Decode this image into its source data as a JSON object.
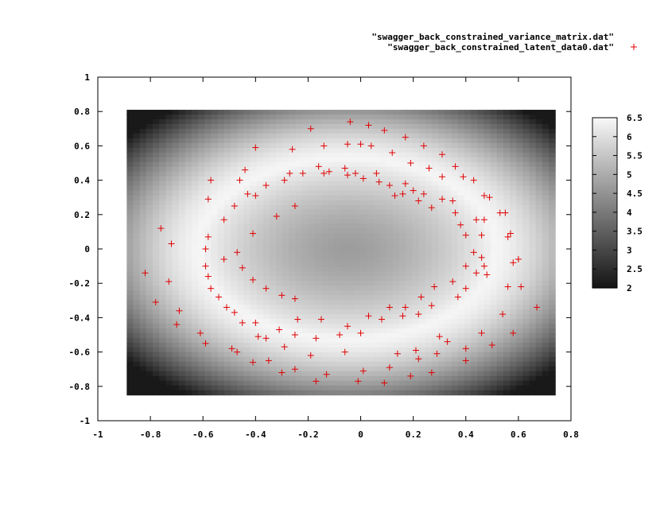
{
  "chart_data": {
    "type": "scatter",
    "title": "",
    "xlabel": "",
    "ylabel": "",
    "xlim": [
      -1,
      0.8
    ],
    "ylim": [
      -1,
      1
    ],
    "xticks": [
      "-1",
      "-0.8",
      "-0.6",
      "-0.4",
      "-0.2",
      "0",
      "0.2",
      "0.4",
      "0.6",
      "0.8"
    ],
    "yticks": [
      "-1",
      "-0.8",
      "-0.6",
      "-0.4",
      "-0.2",
      "0",
      "0.2",
      "0.4",
      "0.6",
      "0.8",
      "1"
    ],
    "legend_position": "top-right",
    "legend": [
      {
        "name": "\"swagger_back_constrained_variance_matrix.dat\"",
        "marker": ""
      },
      {
        "name": "\"swagger_back_constrained_latent_data0.dat\"",
        "marker": "+"
      }
    ],
    "heatmap": {
      "series_name": "\"swagger_back_constrained_variance_matrix.dat\"",
      "xrange": [
        -0.89,
        0.74
      ],
      "yrange": [
        -0.85,
        0.81
      ],
      "center": [
        -0.05,
        0.0
      ],
      "vmin": 2,
      "vmax": 6.5,
      "colorbar_ticks": [
        "6.5",
        "6",
        "5.5",
        "5",
        "4.5",
        "4",
        "3.5",
        "3",
        "2.5",
        "2"
      ],
      "colormap": "grayscale"
    },
    "scatter_series": {
      "name": "\"swagger_back_constrained_latent_data0.dat\"",
      "color": "#e00000",
      "marker": "+",
      "points": [
        [
          -0.04,
          0.74
        ],
        [
          0.03,
          0.72
        ],
        [
          0.09,
          0.69
        ],
        [
          -0.19,
          0.7
        ],
        [
          0.17,
          0.65
        ],
        [
          0.24,
          0.6
        ],
        [
          0.31,
          0.55
        ],
        [
          0.36,
          0.48
        ],
        [
          0.43,
          0.4
        ],
        [
          0.47,
          0.31
        ],
        [
          0.49,
          0.3
        ],
        [
          0.55,
          0.21
        ],
        [
          0.53,
          0.21
        ],
        [
          0.56,
          0.07
        ],
        [
          0.57,
          0.09
        ],
        [
          0.58,
          -0.08
        ],
        [
          0.6,
          -0.06
        ],
        [
          0.61,
          -0.22
        ],
        [
          0.67,
          -0.34
        ],
        [
          0.56,
          -0.22
        ],
        [
          0.58,
          -0.49
        ],
        [
          0.54,
          -0.38
        ],
        [
          0.5,
          -0.56
        ],
        [
          0.46,
          -0.49
        ],
        [
          0.4,
          -0.58
        ],
        [
          0.4,
          -0.65
        ],
        [
          0.33,
          -0.54
        ],
        [
          0.29,
          -0.61
        ],
        [
          0.3,
          -0.51
        ],
        [
          0.27,
          -0.72
        ],
        [
          0.22,
          -0.64
        ],
        [
          0.19,
          -0.74
        ],
        [
          0.21,
          -0.59
        ],
        [
          0.14,
          -0.61
        ],
        [
          0.11,
          -0.69
        ],
        [
          0.09,
          -0.78
        ],
        [
          0.01,
          -0.71
        ],
        [
          -0.01,
          -0.77
        ],
        [
          -0.06,
          -0.6
        ],
        [
          -0.13,
          -0.73
        ],
        [
          -0.17,
          -0.77
        ],
        [
          -0.19,
          -0.62
        ],
        [
          -0.25,
          -0.7
        ],
        [
          -0.3,
          -0.72
        ],
        [
          -0.35,
          -0.65
        ],
        [
          -0.41,
          -0.66
        ],
        [
          -0.47,
          -0.6
        ],
        [
          -0.49,
          -0.58
        ],
        [
          -0.59,
          -0.55
        ],
        [
          -0.61,
          -0.49
        ],
        [
          -0.7,
          -0.44
        ],
        [
          -0.69,
          -0.36
        ],
        [
          -0.78,
          -0.31
        ],
        [
          -0.73,
          -0.19
        ],
        [
          -0.82,
          -0.14
        ],
        [
          -0.72,
          0.03
        ],
        [
          -0.76,
          0.12
        ],
        [
          -0.59,
          -0.1
        ],
        [
          -0.58,
          -0.16
        ],
        [
          -0.57,
          -0.23
        ],
        [
          -0.54,
          -0.28
        ],
        [
          -0.51,
          -0.34
        ],
        [
          -0.48,
          -0.37
        ],
        [
          -0.45,
          -0.43
        ],
        [
          -0.4,
          -0.43
        ],
        [
          -0.39,
          -0.51
        ],
        [
          -0.36,
          -0.52
        ],
        [
          -0.31,
          -0.47
        ],
        [
          -0.29,
          -0.57
        ],
        [
          -0.25,
          -0.5
        ],
        [
          -0.24,
          -0.41
        ],
        [
          -0.15,
          -0.41
        ],
        [
          -0.17,
          -0.52
        ],
        [
          -0.08,
          -0.5
        ],
        [
          -0.05,
          -0.45
        ],
        [
          0.0,
          -0.49
        ],
        [
          0.03,
          -0.39
        ],
        [
          0.08,
          -0.41
        ],
        [
          0.11,
          -0.34
        ],
        [
          0.16,
          -0.39
        ],
        [
          0.17,
          -0.34
        ],
        [
          0.22,
          -0.38
        ],
        [
          0.23,
          -0.28
        ],
        [
          0.27,
          -0.33
        ],
        [
          0.28,
          -0.22
        ],
        [
          0.35,
          -0.19
        ],
        [
          0.37,
          -0.28
        ],
        [
          0.4,
          -0.23
        ],
        [
          0.44,
          -0.14
        ],
        [
          0.47,
          -0.1
        ],
        [
          0.48,
          -0.15
        ],
        [
          0.43,
          -0.02
        ],
        [
          0.46,
          -0.05
        ],
        [
          0.4,
          -0.1
        ],
        [
          0.4,
          0.08
        ],
        [
          0.46,
          0.08
        ],
        [
          0.38,
          0.14
        ],
        [
          0.44,
          0.17
        ],
        [
          0.36,
          0.21
        ],
        [
          0.35,
          0.28
        ],
        [
          0.31,
          0.29
        ],
        [
          0.27,
          0.24
        ],
        [
          0.22,
          0.28
        ],
        [
          0.24,
          0.32
        ],
        [
          0.2,
          0.34
        ],
        [
          0.13,
          0.31
        ],
        [
          0.16,
          0.32
        ],
        [
          0.17,
          0.38
        ],
        [
          0.11,
          0.37
        ],
        [
          0.07,
          0.39
        ],
        [
          0.06,
          0.44
        ],
        [
          0.01,
          0.41
        ],
        [
          -0.02,
          0.44
        ],
        [
          -0.06,
          0.47
        ],
        [
          -0.05,
          0.43
        ],
        [
          -0.14,
          0.44
        ],
        [
          -0.16,
          0.48
        ],
        [
          -0.12,
          0.45
        ],
        [
          -0.22,
          0.44
        ],
        [
          -0.27,
          0.44
        ],
        [
          -0.29,
          0.4
        ],
        [
          -0.36,
          0.37
        ],
        [
          -0.43,
          0.32
        ],
        [
          -0.46,
          0.4
        ],
        [
          -0.48,
          0.25
        ],
        [
          -0.52,
          0.17
        ],
        [
          -0.58,
          0.29
        ],
        [
          -0.57,
          0.4
        ],
        [
          -0.58,
          0.07
        ],
        [
          -0.59,
          0.0
        ],
        [
          -0.52,
          -0.06
        ],
        [
          -0.47,
          -0.02
        ],
        [
          -0.45,
          -0.11
        ],
        [
          -0.41,
          -0.18
        ],
        [
          -0.36,
          -0.23
        ],
        [
          -0.3,
          -0.27
        ],
        [
          -0.25,
          -0.29
        ],
        [
          -0.41,
          0.09
        ],
        [
          -0.32,
          0.19
        ],
        [
          -0.25,
          0.25
        ],
        [
          -0.4,
          0.31
        ],
        [
          -0.44,
          0.46
        ],
        [
          -0.4,
          0.59
        ],
        [
          -0.26,
          0.58
        ],
        [
          -0.14,
          0.6
        ],
        [
          -0.05,
          0.61
        ],
        [
          0.0,
          0.61
        ],
        [
          0.04,
          0.6
        ],
        [
          0.12,
          0.56
        ],
        [
          0.19,
          0.5
        ],
        [
          0.26,
          0.47
        ],
        [
          0.31,
          0.42
        ],
        [
          0.39,
          0.42
        ],
        [
          0.47,
          0.17
        ]
      ]
    }
  }
}
